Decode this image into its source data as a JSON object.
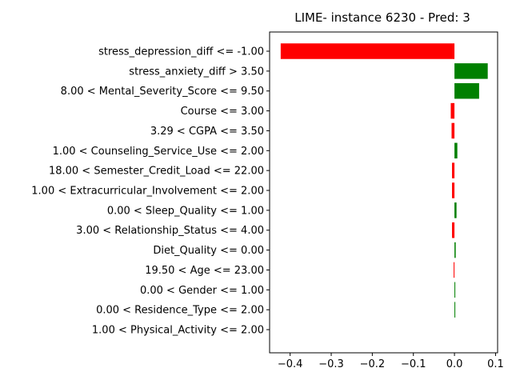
{
  "chart_data": {
    "type": "bar",
    "orientation": "horizontal",
    "title": "LIME- instance 6230 - Pred: 3",
    "xlabel": "",
    "ylabel": "",
    "xlim": [
      -0.45,
      0.105
    ],
    "xticks": [
      -0.4,
      -0.3,
      -0.2,
      -0.1,
      0.0,
      0.1
    ],
    "xtick_labels": [
      "−0.4",
      "−0.3",
      "−0.2",
      "−0.1",
      "0.0",
      "0.1"
    ],
    "grid": false,
    "colors": {
      "positive": "#008000",
      "negative": "#ff0000"
    },
    "categories": [
      "stress_depression_diff <= -1.00",
      "stress_anxiety_diff > 3.50",
      "8.00 < Mental_Severity_Score <= 9.50",
      "Course <= 3.00",
      "3.29 < CGPA <= 3.50",
      "1.00 < Counseling_Service_Use <= 2.00",
      "18.00 < Semester_Credit_Load <= 22.00",
      "1.00 < Extracurricular_Involvement <= 2.00",
      "0.00 < Sleep_Quality <= 1.00",
      "3.00 < Relationship_Status <= 4.00",
      "Diet_Quality <= 0.00",
      "19.50 < Age <= 23.00",
      "0.00 < Gender <= 1.00",
      "0.00 < Residence_Type <= 2.00",
      "1.00 < Physical_Activity <= 2.00"
    ],
    "values": [
      -0.423,
      0.081,
      0.06,
      -0.009,
      -0.007,
      0.007,
      -0.006,
      -0.006,
      0.005,
      -0.006,
      0.003,
      -0.002,
      0.002,
      0.002,
      0.0
    ]
  }
}
